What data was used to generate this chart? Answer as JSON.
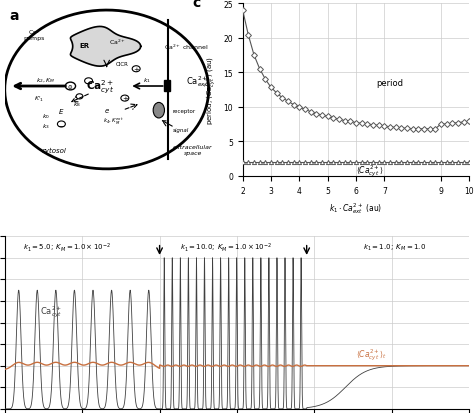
{
  "bg_color": "#ffffff",
  "plot_c": {
    "x_period": [
      2.0,
      2.2,
      2.4,
      2.6,
      2.8,
      3.0,
      3.2,
      3.4,
      3.6,
      3.8,
      4.0,
      4.2,
      4.4,
      4.6,
      4.8,
      5.0,
      5.2,
      5.4,
      5.6,
      5.8,
      6.0,
      6.2,
      6.4,
      6.6,
      6.8,
      7.0,
      7.2,
      7.4,
      7.6,
      7.8,
      8.0,
      8.2,
      8.4,
      8.6,
      8.8,
      9.0,
      9.2,
      9.4,
      9.6,
      9.8,
      10.0
    ],
    "y_period": [
      24.0,
      20.4,
      17.5,
      15.5,
      14.0,
      12.8,
      12.0,
      11.3,
      10.8,
      10.3,
      10.0,
      9.6,
      9.3,
      9.0,
      8.8,
      8.6,
      8.4,
      8.2,
      8.0,
      7.9,
      7.7,
      7.6,
      7.5,
      7.4,
      7.3,
      7.2,
      7.1,
      7.0,
      6.9,
      6.9,
      6.8,
      6.8,
      6.8,
      6.8,
      6.8,
      7.5,
      7.5,
      7.6,
      7.7,
      7.8,
      7.9
    ],
    "x_ca": [
      2.0,
      2.2,
      2.4,
      2.6,
      2.8,
      3.0,
      3.2,
      3.4,
      3.6,
      3.8,
      4.0,
      4.2,
      4.4,
      4.6,
      4.8,
      5.0,
      5.2,
      5.4,
      5.6,
      5.8,
      6.0,
      6.2,
      6.4,
      6.6,
      6.8,
      7.0,
      7.2,
      7.4,
      7.6,
      7.8,
      8.0,
      8.2,
      8.4,
      8.6,
      8.8,
      9.0,
      9.2,
      9.4,
      9.6,
      9.8,
      10.0
    ],
    "y_ca": [
      2.0,
      2.0,
      2.0,
      2.0,
      2.0,
      2.0,
      2.0,
      2.0,
      2.0,
      2.0,
      2.0,
      2.0,
      2.0,
      2.0,
      2.0,
      2.0,
      2.0,
      2.0,
      2.0,
      2.0,
      2.0,
      2.0,
      2.0,
      2.0,
      2.0,
      2.0,
      2.0,
      2.0,
      2.0,
      2.0,
      2.0,
      2.0,
      2.0,
      2.0,
      2.0,
      2.0,
      2.0,
      2.0,
      2.0,
      2.0,
      2.0
    ],
    "xlim": [
      2,
      10
    ],
    "ylim": [
      0,
      25
    ],
    "yticks": [
      0,
      5,
      10,
      15,
      20,
      25
    ],
    "xticks": [
      2,
      3,
      4,
      5,
      6,
      7,
      9,
      10
    ],
    "grid_color": "#cccccc"
  },
  "plot_b": {
    "time_max": 300,
    "ylim": [
      0,
      8
    ],
    "yticks": [
      0,
      1,
      2,
      3,
      4,
      5,
      6,
      7,
      8
    ],
    "ca_color": "#404040",
    "avg_color": "#c87040",
    "grid_color": "#cccccc"
  }
}
